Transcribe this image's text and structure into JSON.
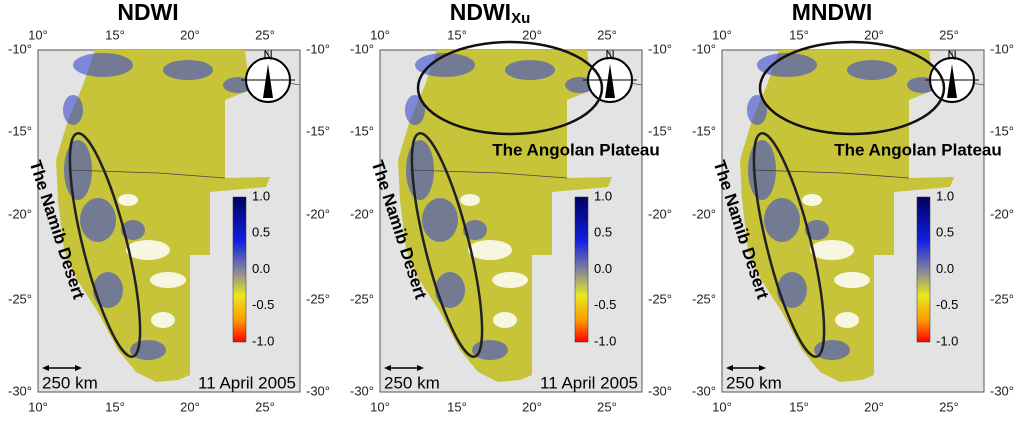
{
  "axes": {
    "lon_labels": [
      "10°",
      "15°",
      "20°",
      "25°"
    ],
    "lat_labels": [
      "-10°",
      "-15°",
      "-20°",
      "-25°",
      "-30°"
    ]
  },
  "colorbar": {
    "ticks": [
      "1.0",
      "0.5",
      "0.0",
      "-0.5",
      "-1.0"
    ]
  },
  "compass": "N",
  "panels": [
    {
      "title": "NDWI",
      "namib_label": "The Namib Desert",
      "scale_label": "250 km",
      "date": "11 April 2005"
    },
    {
      "title": "NDWI",
      "title_sub": "Xu",
      "namib_label": "The Namib Desert",
      "plateau_label": "The Angolan Plateau",
      "scale_label": "250 km",
      "date": "11 April 2005"
    },
    {
      "title": "MNDWI",
      "namib_label": "The Namib Desert",
      "plateau_label": "The Angolan Plateau",
      "scale_label": "250 km"
    }
  ]
}
